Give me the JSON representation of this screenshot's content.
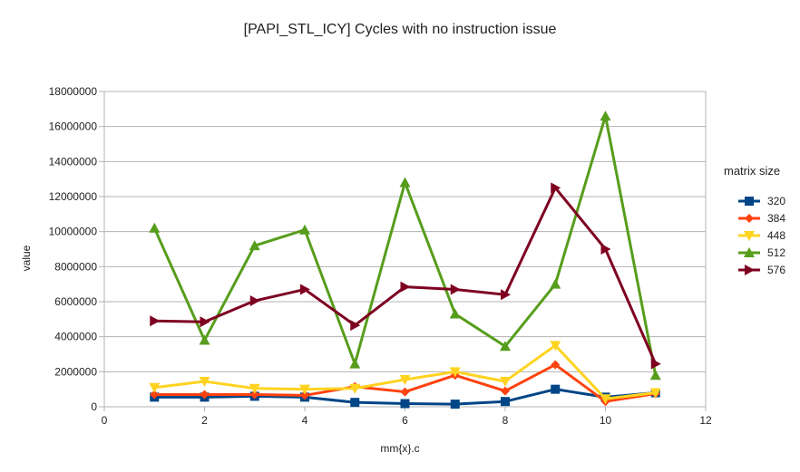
{
  "chart_data": {
    "type": "line",
    "title": "[PAPI_STL_ICY] Cycles with no instruction issue",
    "xlabel": "mm{x}.c",
    "ylabel": "value",
    "xlim": [
      0,
      12
    ],
    "ylim": [
      0,
      18000000
    ],
    "x_ticks": [
      0,
      2,
      4,
      6,
      8,
      10,
      12
    ],
    "y_ticks": [
      0,
      2000000,
      4000000,
      6000000,
      8000000,
      10000000,
      12000000,
      14000000,
      16000000,
      18000000
    ],
    "grid": "horizontal",
    "legend": {
      "title": "matrix size",
      "position": "right"
    },
    "x": [
      1,
      2,
      3,
      4,
      5,
      6,
      7,
      8,
      9,
      10,
      11
    ],
    "series": [
      {
        "name": "320",
        "color": "#004586",
        "marker": "square",
        "values": [
          550000,
          550000,
          600000,
          550000,
          250000,
          180000,
          150000,
          300000,
          1000000,
          550000,
          800000
        ]
      },
      {
        "name": "384",
        "color": "#ff420e",
        "marker": "diamond",
        "values": [
          700000,
          700000,
          700000,
          650000,
          1150000,
          850000,
          1800000,
          900000,
          2400000,
          300000,
          750000
        ]
      },
      {
        "name": "448",
        "color": "#ffd320",
        "marker": "triangle-down",
        "values": [
          1100000,
          1450000,
          1050000,
          1000000,
          1050000,
          1550000,
          2000000,
          1450000,
          3500000,
          450000,
          800000
        ]
      },
      {
        "name": "512",
        "color": "#579d1c",
        "marker": "triangle-up",
        "values": [
          10200000,
          3800000,
          9200000,
          10100000,
          2450000,
          12800000,
          5300000,
          3450000,
          7000000,
          16600000,
          1800000
        ]
      },
      {
        "name": "576",
        "color": "#7e0021",
        "marker": "triangle-right",
        "values": [
          4900000,
          4850000,
          6050000,
          6700000,
          4650000,
          6850000,
          6700000,
          6400000,
          12500000,
          9000000,
          2450000
        ]
      }
    ]
  }
}
